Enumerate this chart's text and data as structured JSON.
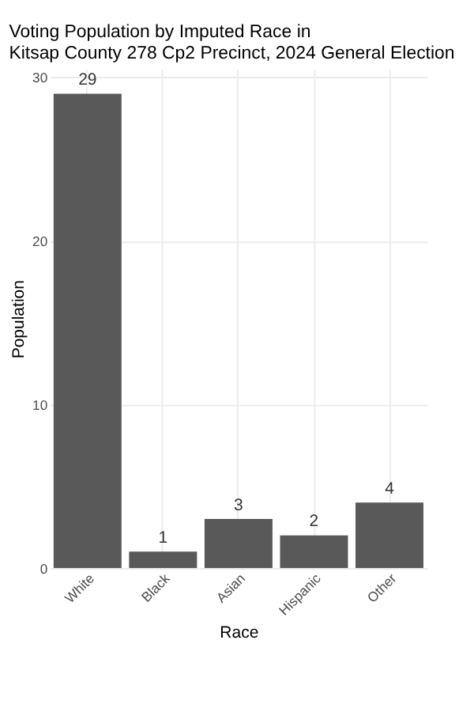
{
  "chart_data": {
    "type": "bar",
    "title": [
      "Voting Population by Imputed Race in",
      "Kitsap County 278  Cp2 Precinct,  2024 General Election"
    ],
    "xlabel": "Race",
    "ylabel": "Population",
    "categories": [
      "White",
      "Black",
      "Asian",
      "Hispanic",
      "Other"
    ],
    "values": [
      29,
      1,
      3,
      2,
      4
    ],
    "data_labels": true,
    "color": "#595959",
    "ylim": [
      0,
      30.5
    ],
    "yticks": [
      0,
      10,
      20,
      30
    ],
    "grid": true
  }
}
